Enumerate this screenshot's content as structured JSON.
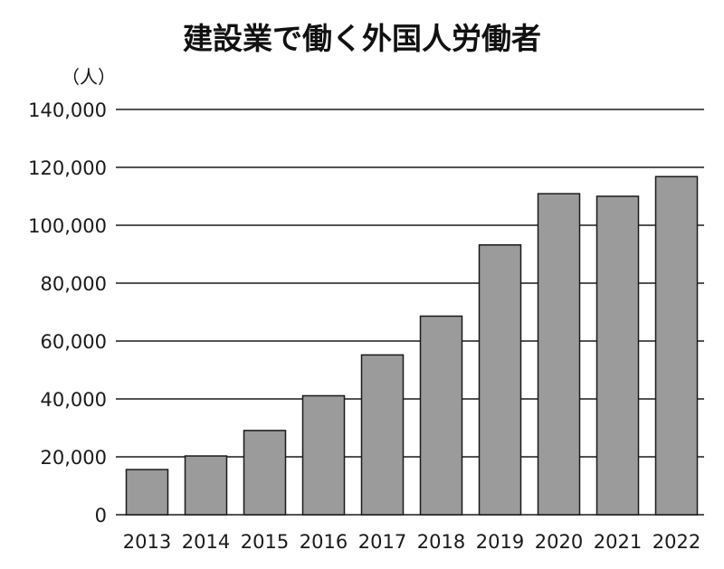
{
  "chart_data": {
    "type": "bar",
    "title": "建設業で働く外国人労働者",
    "ylabel": "（人）",
    "xlabel": "",
    "categories": [
      "2013",
      "2014",
      "2015",
      "2016",
      "2017",
      "2018",
      "2019",
      "2020",
      "2021",
      "2022"
    ],
    "values": [
      15600,
      20300,
      29100,
      41100,
      55200,
      68600,
      93200,
      110900,
      110000,
      116800
    ],
    "ylim": [
      0,
      140000
    ],
    "yticks": [
      0,
      20000,
      40000,
      60000,
      80000,
      100000,
      120000,
      140000
    ],
    "ytick_labels": [
      "0",
      "20,000",
      "40,000",
      "60,000",
      "80,000",
      "100,000",
      "120,000",
      "140,000"
    ],
    "grid": true,
    "legend": "none",
    "colors": {
      "bar": "#9b9b9b",
      "bar_edge": "#1a1a1a",
      "grid": "#1a1a1a",
      "text": "#111111"
    }
  }
}
